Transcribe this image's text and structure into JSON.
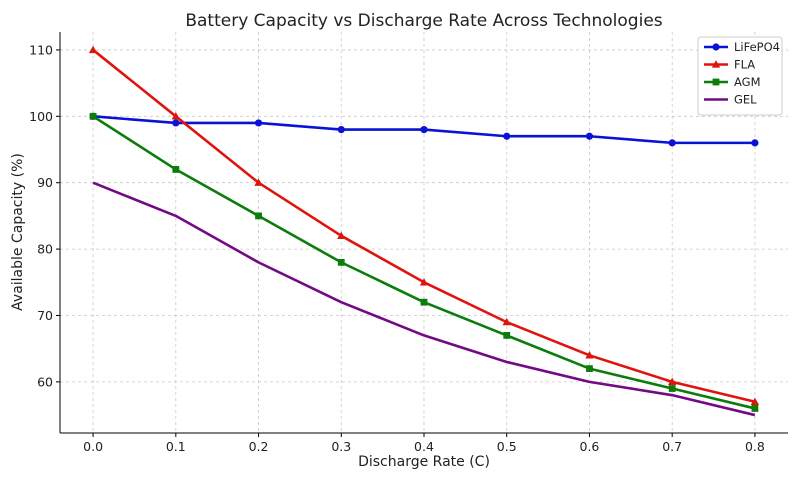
{
  "chart_data": {
    "type": "line",
    "title": "Battery Capacity vs Discharge Rate Across Technologies",
    "xlabel": "Discharge Rate (C)",
    "ylabel": "Available Capacity (%)",
    "x": [
      0.0,
      0.1,
      0.2,
      0.3,
      0.4,
      0.5,
      0.6,
      0.7,
      0.8
    ],
    "x_tick_labels": [
      "0.0",
      "0.1",
      "0.2",
      "0.3",
      "0.4",
      "0.5",
      "0.6",
      "0.7",
      "0.8"
    ],
    "xlim": [
      -0.04,
      0.84
    ],
    "y_ticks": [
      60,
      70,
      80,
      90,
      100,
      110
    ],
    "y_tick_labels": [
      "60",
      "70",
      "80",
      "90",
      "100",
      "110"
    ],
    "ylim": [
      52.3,
      112.7
    ],
    "grid": true,
    "legend_position": "top-right",
    "series": [
      {
        "name": "LiFePO4",
        "color": "#0a12d6",
        "marker": "circle",
        "values": [
          100,
          99,
          99,
          98,
          98,
          97,
          97,
          96,
          96
        ]
      },
      {
        "name": "FLA",
        "color": "#e0140e",
        "marker": "triangle",
        "values": [
          110,
          100,
          90,
          82,
          75,
          69,
          64,
          60,
          57
        ]
      },
      {
        "name": "AGM",
        "color": "#0a7d0a",
        "marker": "square",
        "values": [
          100,
          92,
          85,
          78,
          72,
          67,
          62,
          59,
          56
        ]
      },
      {
        "name": "GEL",
        "color": "#730a85",
        "marker": "none",
        "values": [
          90,
          85,
          78,
          72,
          67,
          63,
          60,
          58,
          55
        ]
      }
    ]
  }
}
